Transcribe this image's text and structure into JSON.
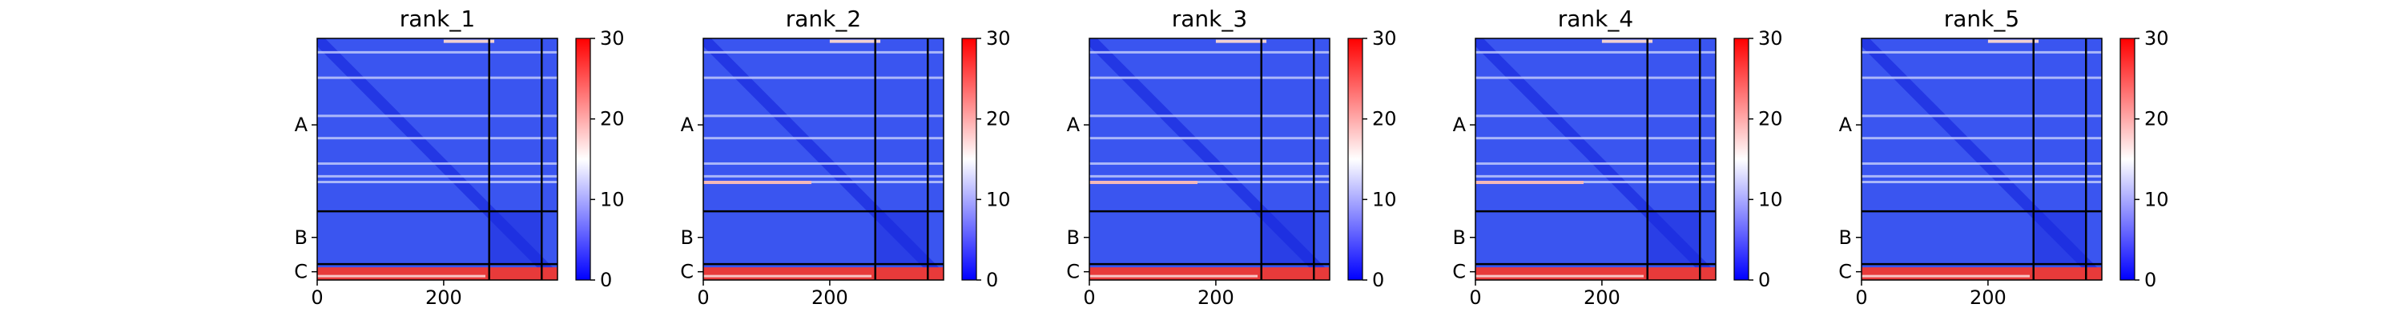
{
  "chart_data": {
    "type": "heatmap",
    "colormap": {
      "name": "bwr",
      "low": "#0000ff",
      "mid": "#ffffff",
      "high": "#ff0000"
    },
    "xlim": [
      0,
      380
    ],
    "xticks": [
      0,
      200
    ],
    "chain_boundaries": [
      272,
      355,
      380
    ],
    "chain_labels": [
      {
        "label": "A",
        "center": 136
      },
      {
        "label": "B",
        "center": 313
      },
      {
        "label": "C",
        "center": 367
      }
    ],
    "colorbar": {
      "vmin": 0,
      "vmax": 30,
      "ticks": [
        0,
        10,
        20,
        30
      ]
    },
    "panels": [
      {
        "title": "rank_1"
      },
      {
        "title": "rank_2"
      },
      {
        "title": "rank_3"
      },
      {
        "title": "rank_4"
      },
      {
        "title": "rank_5"
      }
    ]
  }
}
